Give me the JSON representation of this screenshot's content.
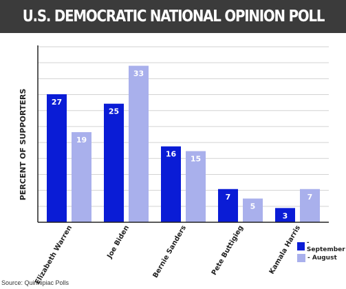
{
  "header": {
    "title": "U.S. DEMOCRATIC NATIONAL OPINION POLL"
  },
  "source": "Source: Quinnipiac Polls",
  "colors": {
    "september": "#0a1cd6",
    "august": "#a9b0ec",
    "title_bg": "#3b3b3b"
  },
  "chart_data": {
    "type": "bar",
    "title": "U.S. DEMOCRATIC NATIONAL OPINION POLL",
    "ylabel": "PERCENT OF SUPPORTERS",
    "xlabel": "",
    "categories": [
      "Elizabeth Warren",
      "Joe Biden",
      "Bernie Sanders",
      "Pete Buttigieg",
      "Kamala Harris"
    ],
    "series": [
      {
        "name": "September",
        "legend_label": "- September",
        "color": "#0a1cd6",
        "values": [
          27,
          25,
          16,
          7,
          3
        ]
      },
      {
        "name": "August",
        "legend_label": "- August",
        "color": "#a9b0ec",
        "values": [
          19,
          33,
          15,
          5,
          7
        ]
      }
    ],
    "ylim": [
      0,
      37
    ],
    "grid": true,
    "legend_position": "bottom-right"
  }
}
